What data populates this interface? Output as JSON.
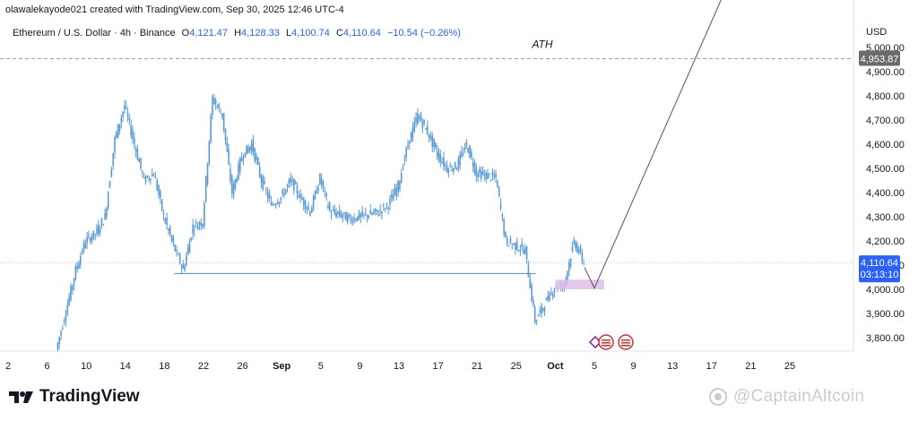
{
  "header": {
    "attribution": "olawalekayode021 created with TradingView.com, Sep 30, 2025 12:46 UTC-4"
  },
  "legend": {
    "symbol": "Ethereum / U.S. Dollar · 4h · Binance",
    "open_key": "O",
    "open": "4,121.47",
    "high_key": "H",
    "high": "4,128.33",
    "low_key": "L",
    "low": "4,100.74",
    "close_key": "C",
    "close": "4,110.64",
    "change": "−10.54 (−0.26%)"
  },
  "chart_data": {
    "type": "candlestick",
    "currency": "USD",
    "ylim": [
      3750,
      5050
    ],
    "y_ticks": [
      "3,800.00",
      "3,900.00",
      "4,000.00",
      "4,100.00",
      "4,200.00",
      "4,300.00",
      "4,400.00",
      "4,500.00",
      "4,600.00",
      "4,700.00",
      "4,800.00",
      "4,900.00",
      "5,000.00"
    ],
    "x_ticks": [
      "2",
      "6",
      "10",
      "14",
      "18",
      "22",
      "26",
      "Sep",
      "5",
      "9",
      "13",
      "17",
      "21",
      "25",
      "Oct",
      "5",
      "9",
      "13",
      "17",
      "21",
      "25"
    ],
    "ath": {
      "label": "ATH",
      "price": "4,953.87",
      "value": 4953.87
    },
    "last_price": {
      "price": "4,110.64",
      "countdown": "03:13:10",
      "value": 4110.64
    },
    "support_line": {
      "from": "Aug 19",
      "to": "Sep 25",
      "value": 4065
    },
    "demand_zone": {
      "low": 4000,
      "high": 4040
    },
    "projection": [
      {
        "date": "Sep 30",
        "value": 4090
      },
      {
        "date": "Oct 1",
        "value": 4005
      },
      {
        "date": "Oct 14",
        "value": 5200
      }
    ],
    "price_path": [
      {
        "date": "Aug 7",
        "value": 3750
      },
      {
        "date": "Aug 8",
        "value": 3910
      },
      {
        "date": "Aug 9",
        "value": 4080
      },
      {
        "date": "Aug 10",
        "value": 4200
      },
      {
        "date": "Aug 11",
        "value": 4230
      },
      {
        "date": "Aug 12",
        "value": 4300
      },
      {
        "date": "Aug 13",
        "value": 4620
      },
      {
        "date": "Aug 14",
        "value": 4760
      },
      {
        "date": "Aug 15",
        "value": 4600
      },
      {
        "date": "Aug 16",
        "value": 4450
      },
      {
        "date": "Aug 17",
        "value": 4480
      },
      {
        "date": "Aug 18",
        "value": 4300
      },
      {
        "date": "Aug 19",
        "value": 4180
      },
      {
        "date": "Aug 20",
        "value": 4080
      },
      {
        "date": "Aug 21",
        "value": 4260
      },
      {
        "date": "Aug 22",
        "value": 4280
      },
      {
        "date": "Aug 23",
        "value": 4790
      },
      {
        "date": "Aug 24",
        "value": 4720
      },
      {
        "date": "Aug 25",
        "value": 4400
      },
      {
        "date": "Aug 26",
        "value": 4550
      },
      {
        "date": "Aug 27",
        "value": 4600
      },
      {
        "date": "Aug 28",
        "value": 4450
      },
      {
        "date": "Aug 29",
        "value": 4350
      },
      {
        "date": "Aug 30",
        "value": 4380
      },
      {
        "date": "Aug 31",
        "value": 4450
      },
      {
        "date": "Sep 1",
        "value": 4380
      },
      {
        "date": "Sep 2",
        "value": 4320
      },
      {
        "date": "Sep 3",
        "value": 4460
      },
      {
        "date": "Sep 4",
        "value": 4320
      },
      {
        "date": "Sep 5",
        "value": 4310
      },
      {
        "date": "Sep 6",
        "value": 4290
      },
      {
        "date": "Sep 7",
        "value": 4300
      },
      {
        "date": "Sep 8",
        "value": 4310
      },
      {
        "date": "Sep 9",
        "value": 4320
      },
      {
        "date": "Sep 10",
        "value": 4350
      },
      {
        "date": "Sep 11",
        "value": 4430
      },
      {
        "date": "Sep 12",
        "value": 4600
      },
      {
        "date": "Sep 13",
        "value": 4720
      },
      {
        "date": "Sep 14",
        "value": 4650
      },
      {
        "date": "Sep 15",
        "value": 4560
      },
      {
        "date": "Sep 16",
        "value": 4500
      },
      {
        "date": "Sep 17",
        "value": 4510
      },
      {
        "date": "Sep 18",
        "value": 4600
      },
      {
        "date": "Sep 19",
        "value": 4480
      },
      {
        "date": "Sep 20",
        "value": 4470
      },
      {
        "date": "Sep 21",
        "value": 4460
      },
      {
        "date": "Sep 22",
        "value": 4200
      },
      {
        "date": "Sep 23",
        "value": 4180
      },
      {
        "date": "Sep 24",
        "value": 4160
      },
      {
        "date": "Sep 25",
        "value": 3870
      },
      {
        "date": "Sep 26",
        "value": 3940
      },
      {
        "date": "Sep 27",
        "value": 4010
      },
      {
        "date": "Sep 28",
        "value": 4020
      },
      {
        "date": "Sep 29",
        "value": 4200
      },
      {
        "date": "Sep 30",
        "value": 4110
      }
    ]
  },
  "footer": {
    "brand": "TradingView",
    "watermark": "@CaptainAltcoin"
  },
  "colors": {
    "candle": "#5b9bd5",
    "accent": "#2962ff",
    "zone": "#e1bee7",
    "ath_badge": "#6b6b6b"
  },
  "icons": [
    "tradingview-logo-icon",
    "economic-event-icon",
    "us-flag-icon",
    "captainaltcoin-logo-icon"
  ]
}
